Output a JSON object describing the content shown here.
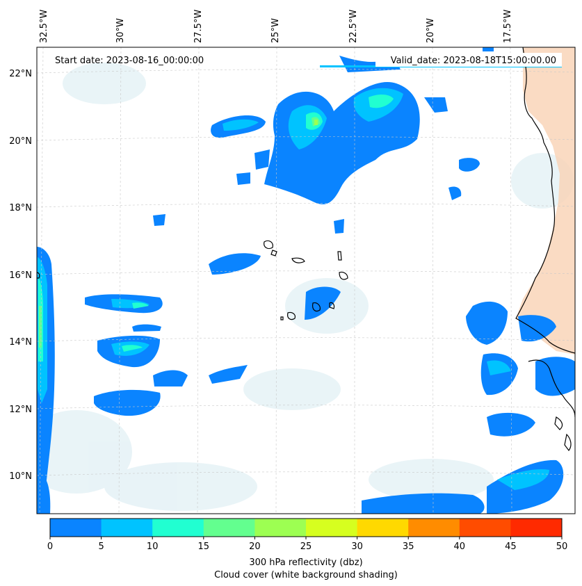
{
  "map": {
    "start_date_label": "Start date: 2023-08-16_00:00:00",
    "valid_date_label": "Valid_date: 2023-08-18T15:00:00.00",
    "lon_labels": [
      "32.5°W",
      "30°W",
      "27.5°W",
      "25°W",
      "22.5°W",
      "20°W",
      "17.5°W"
    ],
    "lat_labels": [
      "22°N",
      "20°N",
      "18°N",
      "16°N",
      "14°N",
      "12°N",
      "10°N"
    ],
    "colorbar": {
      "ticks": [
        "0",
        "5",
        "10",
        "15",
        "20",
        "25",
        "30",
        "35",
        "40",
        "45",
        "50"
      ],
      "colors": [
        "#0a84ff",
        "#00c3ff",
        "#21ffd1",
        "#63ff8f",
        "#9dff52",
        "#d6ff1f",
        "#ffd900",
        "#ff8c00",
        "#ff4c00",
        "#ff2a00"
      ],
      "label_line1": "300 hPa reflectivity (dbz)",
      "label_line2": "Cloud cover (white background shading)"
    }
  }
}
